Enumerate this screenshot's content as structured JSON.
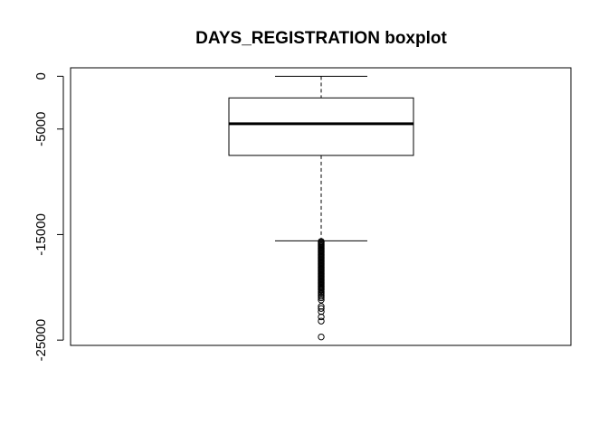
{
  "chart_data": {
    "type": "boxplot",
    "title": "DAYS_REGISTRATION boxplot",
    "xlabel": "",
    "ylabel": "",
    "ylim": [
      -25500,
      800
    ],
    "yticks": [
      0,
      -5000,
      -15000,
      -25000
    ],
    "ytick_labels": [
      "0",
      "-5000",
      "-15000",
      "-25000"
    ],
    "grid": false,
    "box": {
      "whisker_high": 0,
      "q3": -2050,
      "median": -4500,
      "q1": -7500,
      "whisker_low": -15600
    },
    "outliers": [
      -15650,
      -15750,
      -15850,
      -15950,
      -16050,
      -16150,
      -16250,
      -16350,
      -16450,
      -16550,
      -16650,
      -16750,
      -16850,
      -16950,
      -17050,
      -17150,
      -17250,
      -17350,
      -17450,
      -17550,
      -17650,
      -17750,
      -17850,
      -17950,
      -18050,
      -18150,
      -18250,
      -18350,
      -18450,
      -18550,
      -18650,
      -18750,
      -18850,
      -18950,
      -19050,
      -19150,
      -19250,
      -19350,
      -19450,
      -19550,
      -19650,
      -19750,
      -19850,
      -19950,
      -20050,
      -20150,
      -20250,
      -20400,
      -20550,
      -20700,
      -20850,
      -21000,
      -21200,
      -21800,
      -22000,
      -22300,
      -22800,
      -23200,
      -24700
    ]
  }
}
